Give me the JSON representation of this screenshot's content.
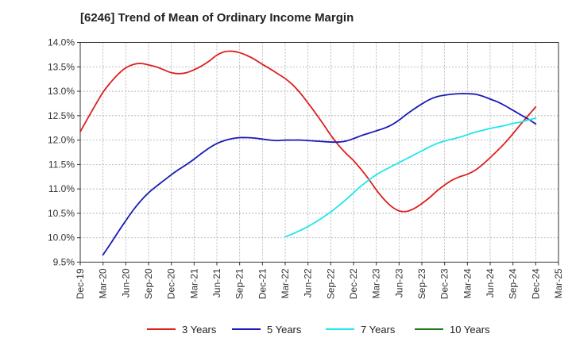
{
  "chart_data": {
    "type": "line",
    "title": "[6246]  Trend of Mean of Ordinary Income Margin",
    "xlabel": "",
    "ylabel": "",
    "x_ticks": [
      "Dec-19",
      "Mar-20",
      "Jun-20",
      "Sep-20",
      "Dec-20",
      "Mar-21",
      "Jun-21",
      "Sep-21",
      "Dec-21",
      "Mar-22",
      "Jun-22",
      "Sep-22",
      "Dec-22",
      "Mar-23",
      "Jun-23",
      "Sep-23",
      "Dec-23",
      "Mar-24",
      "Jun-24",
      "Sep-24",
      "Dec-24",
      "Mar-25"
    ],
    "y_ticks": [
      "9.5%",
      "10.0%",
      "10.5%",
      "11.0%",
      "11.5%",
      "12.0%",
      "12.5%",
      "13.0%",
      "13.5%",
      "14.0%"
    ],
    "ylim": [
      9.5,
      14.0
    ],
    "grid": true,
    "legend_position": "bottom",
    "series": [
      {
        "name": "3 Years",
        "color": "#dd1f1f",
        "x": [
          "Dec-19",
          "Jan-20",
          "Feb-20",
          "Mar-20",
          "Apr-20",
          "May-20",
          "Jun-20",
          "Jul-20",
          "Aug-20",
          "Sep-20",
          "Oct-20",
          "Nov-20",
          "Dec-20",
          "Jan-21",
          "Feb-21",
          "Mar-21",
          "Apr-21",
          "May-21",
          "Jun-21",
          "Jul-21",
          "Aug-21",
          "Sep-21",
          "Oct-21",
          "Nov-21",
          "Dec-21",
          "Jan-22",
          "Feb-22",
          "Mar-22",
          "Apr-22",
          "May-22",
          "Jun-22",
          "Jul-22",
          "Aug-22",
          "Sep-22",
          "Oct-22",
          "Nov-22",
          "Dec-22",
          "Jan-23",
          "Feb-23",
          "Mar-23",
          "Apr-23",
          "May-23",
          "Jun-23",
          "Jul-23",
          "Aug-23",
          "Sep-23",
          "Oct-23",
          "Nov-23",
          "Dec-23",
          "Jan-24",
          "Feb-24",
          "Mar-24",
          "Apr-24",
          "May-24",
          "Jun-24",
          "Jul-24",
          "Aug-24",
          "Sep-24",
          "Oct-24",
          "Nov-24",
          "Dec-24"
        ],
        "values": [
          12.17,
          12.45,
          12.72,
          12.98,
          13.18,
          13.35,
          13.48,
          13.55,
          13.57,
          13.54,
          13.5,
          13.44,
          13.38,
          13.36,
          13.38,
          13.44,
          13.52,
          13.62,
          13.74,
          13.81,
          13.82,
          13.79,
          13.73,
          13.65,
          13.55,
          13.46,
          13.36,
          13.26,
          13.13,
          12.96,
          12.76,
          12.55,
          12.33,
          12.1,
          11.9,
          11.73,
          11.58,
          11.4,
          11.2,
          10.98,
          10.79,
          10.64,
          10.55,
          10.54,
          10.6,
          10.7,
          10.82,
          10.96,
          11.08,
          11.18,
          11.25,
          11.3,
          11.38,
          11.5,
          11.64,
          11.79,
          11.95,
          12.13,
          12.32,
          12.5,
          12.68
        ]
      },
      {
        "name": "5 Years",
        "color": "#1a1ab8",
        "x": [
          "Mar-20",
          "Apr-20",
          "May-20",
          "Jun-20",
          "Jul-20",
          "Aug-20",
          "Sep-20",
          "Oct-20",
          "Nov-20",
          "Dec-20",
          "Jan-21",
          "Feb-21",
          "Mar-21",
          "Apr-21",
          "May-21",
          "Jun-21",
          "Jul-21",
          "Aug-21",
          "Sep-21",
          "Oct-21",
          "Nov-21",
          "Dec-21",
          "Jan-22",
          "Feb-22",
          "Mar-22",
          "Apr-22",
          "May-22",
          "Jun-22",
          "Jul-22",
          "Aug-22",
          "Sep-22",
          "Oct-22",
          "Nov-22",
          "Dec-22",
          "Jan-23",
          "Feb-23",
          "Mar-23",
          "Apr-23",
          "May-23",
          "Jun-23",
          "Jul-23",
          "Aug-23",
          "Sep-23",
          "Oct-23",
          "Nov-23",
          "Dec-23",
          "Jan-24",
          "Feb-24",
          "Mar-24",
          "Apr-24",
          "May-24",
          "Jun-24",
          "Jul-24",
          "Aug-24",
          "Sep-24",
          "Oct-24",
          "Nov-24",
          "Dec-24"
        ],
        "values": [
          9.65,
          9.88,
          10.12,
          10.35,
          10.57,
          10.76,
          10.92,
          11.05,
          11.17,
          11.29,
          11.4,
          11.5,
          11.61,
          11.73,
          11.84,
          11.93,
          11.99,
          12.03,
          12.05,
          12.05,
          12.04,
          12.02,
          12.0,
          11.99,
          12.0,
          12.0,
          12.0,
          11.99,
          11.98,
          11.97,
          11.96,
          11.96,
          11.98,
          12.03,
          12.09,
          12.14,
          12.19,
          12.24,
          12.31,
          12.41,
          12.53,
          12.64,
          12.74,
          12.83,
          12.89,
          12.92,
          12.94,
          12.95,
          12.95,
          12.94,
          12.9,
          12.84,
          12.78,
          12.7,
          12.61,
          12.52,
          12.43,
          12.33
        ]
      },
      {
        "name": "7 Years",
        "color": "#20e6ea",
        "x": [
          "Mar-22",
          "Apr-22",
          "May-22",
          "Jun-22",
          "Jul-22",
          "Aug-22",
          "Sep-22",
          "Oct-22",
          "Nov-22",
          "Dec-22",
          "Jan-23",
          "Feb-23",
          "Mar-23",
          "Apr-23",
          "May-23",
          "Jun-23",
          "Jul-23",
          "Aug-23",
          "Sep-23",
          "Oct-23",
          "Nov-23",
          "Dec-23",
          "Jan-24",
          "Feb-24",
          "Mar-24",
          "Apr-24",
          "May-24",
          "Jun-24",
          "Jul-24",
          "Aug-24",
          "Sep-24",
          "Oct-24",
          "Nov-24",
          "Dec-24"
        ],
        "values": [
          10.02,
          10.08,
          10.15,
          10.23,
          10.32,
          10.42,
          10.53,
          10.65,
          10.78,
          10.92,
          11.06,
          11.18,
          11.29,
          11.38,
          11.46,
          11.54,
          11.62,
          11.7,
          11.78,
          11.86,
          11.93,
          11.98,
          12.02,
          12.06,
          12.11,
          12.16,
          12.2,
          12.24,
          12.27,
          12.3,
          12.34,
          12.37,
          12.41,
          12.45
        ]
      },
      {
        "name": "10 Years",
        "color": "#1e7a1e",
        "x": [],
        "values": []
      }
    ]
  }
}
